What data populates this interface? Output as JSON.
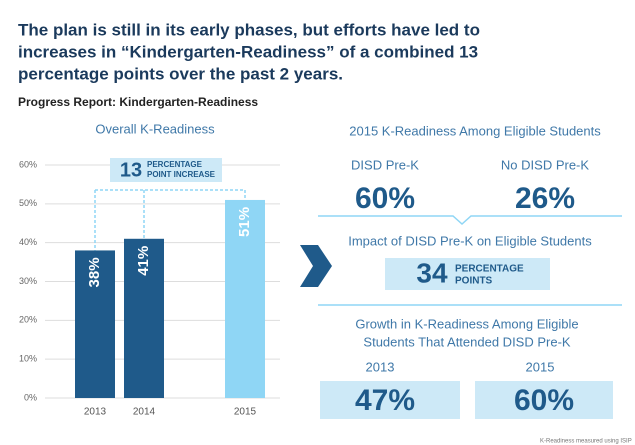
{
  "headline": [
    "The plan is still in its early phases, but efforts have led to",
    "increases in “Kindergarten-Readiness” of a combined 13",
    "percentage points over the past 2 years."
  ],
  "subtitle": "Progress Report: Kindergarten-Readiness",
  "chart_data": {
    "type": "bar",
    "title": "Overall K-Readiness",
    "categories": [
      "2013",
      "2014",
      "2015"
    ],
    "values": [
      38,
      41,
      51
    ],
    "value_labels": [
      "38%",
      "41%",
      "51%"
    ],
    "colors": [
      "#1f5a8a",
      "#1f5a8a",
      "#8fd6f5"
    ],
    "ylim": [
      0,
      60
    ],
    "yticks": [
      {
        "value": 0,
        "label": "0%"
      },
      {
        "value": 10,
        "label": "10%"
      },
      {
        "value": 20,
        "label": "20%"
      },
      {
        "value": 30,
        "label": "30%"
      },
      {
        "value": 40,
        "label": "40%"
      },
      {
        "value": 50,
        "label": "50%"
      },
      {
        "value": 60,
        "label": "60%"
      }
    ],
    "grid": true,
    "annotation": {
      "number": "13",
      "lines": [
        "PERCENTAGE",
        "POINT INCREASE"
      ]
    }
  },
  "panel_2015": {
    "title": "2015 K-Readiness Among Eligible Students",
    "left": {
      "label": "DISD Pre-K",
      "value": "60%"
    },
    "right": {
      "label": "No DISD Pre-K",
      "value": "26%"
    }
  },
  "impact": {
    "title": "Impact of DISD Pre-K on Eligible Students",
    "number": "34",
    "lines": [
      "PERCENTAGE",
      "POINTS"
    ]
  },
  "growth": {
    "title": [
      "Growth in K-Readiness Among Eligible",
      "Students That Attended DISD Pre-K"
    ],
    "left": {
      "label": "2013",
      "value": "47%"
    },
    "right": {
      "label": "2015",
      "value": "60%"
    }
  },
  "footnote": "K-Readiness measured using ISIP"
}
